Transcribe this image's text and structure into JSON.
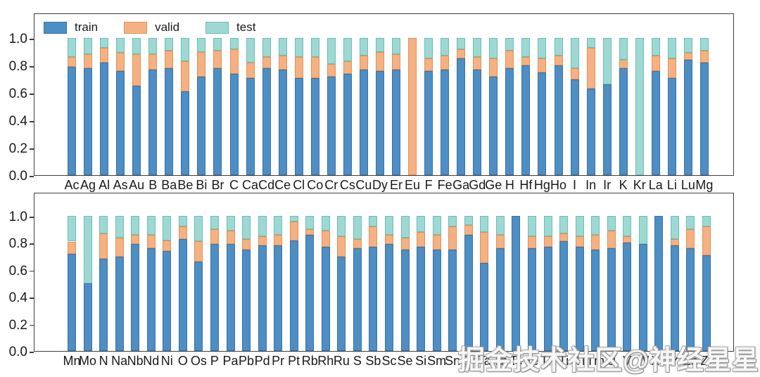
{
  "watermark": {
    "text": "掘金技术社区@神经星星"
  },
  "legend": {
    "items": [
      {
        "label": "train",
        "series_key": "train"
      },
      {
        "label": "valid",
        "series_key": "valid"
      },
      {
        "label": "test",
        "series_key": "test"
      }
    ]
  },
  "colors": {
    "train": "#4D8EC4",
    "train_edge": "#3A72A5",
    "valid": "#F5B183",
    "valid_edge": "#E09256",
    "test": "#9FD8D2",
    "test_edge": "#65C0BA",
    "axis": "#3f3f3f",
    "text": "#1a1a1a"
  },
  "chart_data": [
    {
      "type": "bar",
      "stacked": true,
      "panel": "top",
      "title": "",
      "xlabel": "",
      "ylabel": "",
      "ylim": [
        0.0,
        1.0
      ],
      "grid": false,
      "legend_position": "upper-left",
      "yticks": [
        "0.0",
        "0.2",
        "0.4",
        "0.6",
        "0.8",
        "1.0"
      ],
      "categories": [
        "Ac",
        "Ag",
        "Al",
        "As",
        "Au",
        "B",
        "Ba",
        "Be",
        "Bi",
        "Br",
        "C",
        "Ca",
        "Cd",
        "Ce",
        "Cl",
        "Co",
        "Cr",
        "Cs",
        "Cu",
        "Dy",
        "Er",
        "Eu",
        "F",
        "Fe",
        "Ga",
        "Gd",
        "Ge",
        "H",
        "Hf",
        "Hg",
        "Ho",
        "I",
        "In",
        "Ir",
        "K",
        "Kr",
        "La",
        "Li",
        "Lu",
        "Mg"
      ],
      "series": [
        {
          "name": "train",
          "values": [
            0.79,
            0.78,
            0.82,
            0.76,
            0.65,
            0.77,
            0.78,
            0.61,
            0.72,
            0.78,
            0.74,
            0.71,
            0.78,
            0.77,
            0.71,
            0.71,
            0.72,
            0.74,
            0.77,
            0.76,
            0.77,
            0.0,
            0.76,
            0.77,
            0.85,
            0.77,
            0.72,
            0.78,
            0.8,
            0.75,
            0.8,
            0.7,
            0.63,
            0.66,
            0.78,
            0.0,
            0.76,
            0.71,
            0.84,
            0.82
          ]
        },
        {
          "name": "valid",
          "values": [
            0.07,
            0.1,
            0.11,
            0.13,
            0.23,
            0.11,
            0.13,
            0.22,
            0.18,
            0.13,
            0.18,
            0.11,
            0.08,
            0.1,
            0.15,
            0.15,
            0.09,
            0.09,
            0.1,
            0.14,
            0.11,
            1.0,
            0.09,
            0.1,
            0.07,
            0.09,
            0.13,
            0.13,
            0.06,
            0.1,
            0.07,
            0.08,
            0.3,
            0.0,
            0.06,
            0.0,
            0.11,
            0.14,
            0.05,
            0.09
          ]
        },
        {
          "name": "test",
          "values": [
            0.14,
            0.12,
            0.07,
            0.11,
            0.12,
            0.12,
            0.09,
            0.17,
            0.1,
            0.09,
            0.08,
            0.18,
            0.14,
            0.13,
            0.14,
            0.14,
            0.19,
            0.17,
            0.13,
            0.1,
            0.12,
            0.0,
            0.15,
            0.13,
            0.08,
            0.14,
            0.15,
            0.09,
            0.14,
            0.15,
            0.13,
            0.22,
            0.07,
            0.34,
            0.16,
            1.0,
            0.13,
            0.15,
            0.11,
            0.09
          ]
        }
      ]
    },
    {
      "type": "bar",
      "stacked": true,
      "panel": "bottom",
      "title": "",
      "xlabel": "",
      "ylabel": "",
      "ylim": [
        0.0,
        1.0
      ],
      "grid": false,
      "legend_position": "none",
      "yticks": [
        "0.0",
        "0.2",
        "0.4",
        "0.6",
        "0.8",
        "1.0"
      ],
      "categories": [
        "Mn",
        "Mo",
        "N",
        "Na",
        "Nb",
        "Nd",
        "Ni",
        "O",
        "Os",
        "P",
        "Pa",
        "Pb",
        "Pd",
        "Pr",
        "Pt",
        "Rb",
        "Rh",
        "Ru",
        "S",
        "Sb",
        "Sc",
        "Se",
        "Si",
        "Sm",
        "Sn",
        "Sr",
        "Ta",
        "Tb",
        "Tc",
        "Te",
        "Th",
        "Ti",
        "Tl",
        "Tm",
        "U",
        "V",
        "W",
        "Xe",
        "Y",
        "Zn",
        "Zr"
      ],
      "series": [
        {
          "name": "train",
          "values": [
            0.72,
            0.5,
            0.68,
            0.7,
            0.79,
            0.76,
            0.74,
            0.83,
            0.66,
            0.79,
            0.79,
            0.75,
            0.78,
            0.78,
            0.82,
            0.86,
            0.77,
            0.7,
            0.76,
            0.77,
            0.79,
            0.75,
            0.77,
            0.75,
            0.75,
            0.86,
            0.65,
            0.76,
            1.0,
            0.76,
            0.77,
            0.81,
            0.77,
            0.75,
            0.76,
            0.8,
            0.79,
            1.0,
            0.78,
            0.76,
            0.71
          ]
        },
        {
          "name": "valid",
          "values": [
            0.09,
            0.0,
            0.19,
            0.14,
            0.07,
            0.1,
            0.08,
            0.09,
            0.15,
            0.11,
            0.1,
            0.08,
            0.07,
            0.08,
            0.14,
            0.04,
            0.12,
            0.15,
            0.07,
            0.15,
            0.07,
            0.09,
            0.11,
            0.11,
            0.17,
            0.07,
            0.23,
            0.1,
            0.0,
            0.09,
            0.08,
            0.06,
            0.08,
            0.11,
            0.13,
            0.05,
            0.0,
            0.0,
            0.05,
            0.14,
            0.21
          ]
        },
        {
          "name": "test",
          "values": [
            0.19,
            0.5,
            0.13,
            0.16,
            0.14,
            0.14,
            0.18,
            0.08,
            0.19,
            0.1,
            0.11,
            0.17,
            0.15,
            0.14,
            0.04,
            0.1,
            0.11,
            0.15,
            0.17,
            0.08,
            0.14,
            0.16,
            0.12,
            0.14,
            0.08,
            0.07,
            0.12,
            0.14,
            0.0,
            0.15,
            0.15,
            0.13,
            0.15,
            0.14,
            0.11,
            0.15,
            0.21,
            0.0,
            0.17,
            0.1,
            0.08
          ]
        }
      ]
    }
  ]
}
